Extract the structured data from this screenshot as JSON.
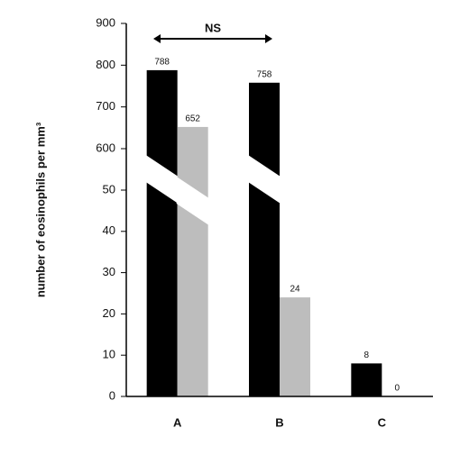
{
  "chart_data": {
    "type": "bar",
    "y_label": "number of eosinophils per mm³",
    "annotation": "NS",
    "categories": [
      "A",
      "B",
      "C"
    ],
    "series": [
      {
        "color": "#000000",
        "values": [
          788,
          758,
          8
        ]
      },
      {
        "color": "#bdbdbd",
        "values": [
          652,
          24,
          0
        ]
      }
    ],
    "ylim_lower": [
      0,
      50
    ],
    "ylim_upper": [
      600,
      900
    ],
    "yticks": [
      0,
      10,
      20,
      30,
      40,
      50,
      600,
      700,
      800,
      900
    ]
  }
}
